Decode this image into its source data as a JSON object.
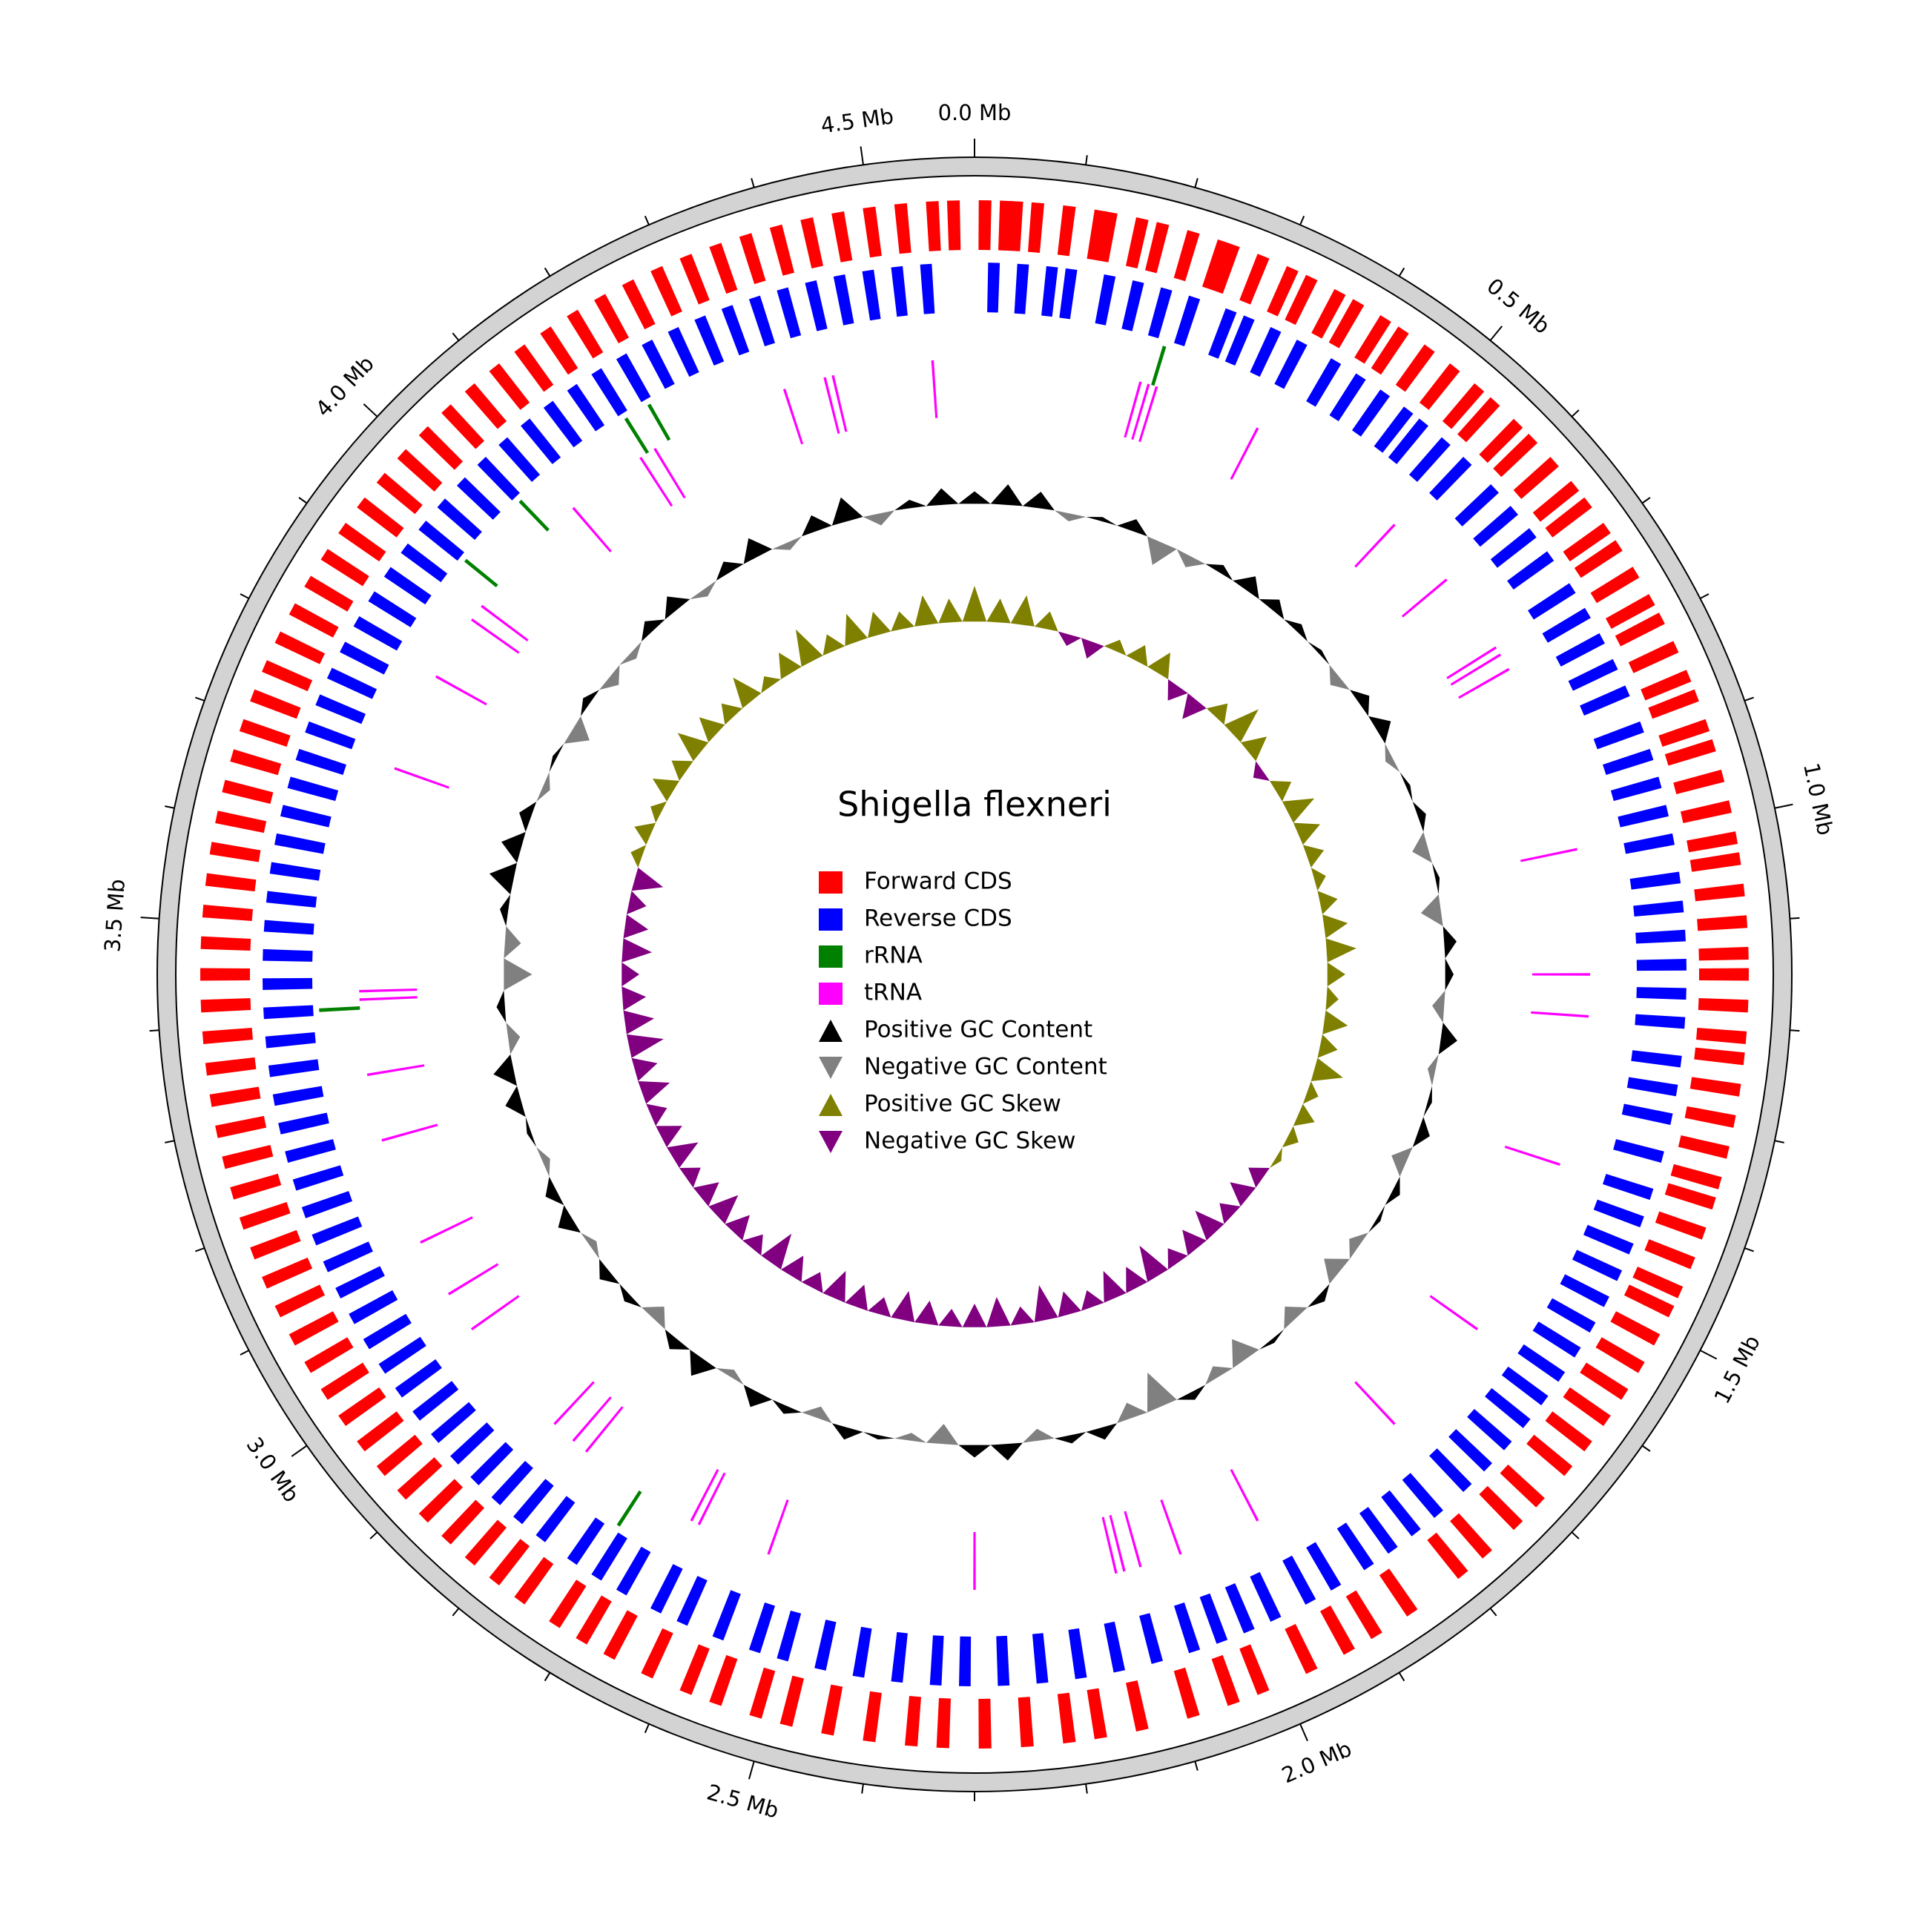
{
  "chart_data": {
    "type": "circular-genome",
    "title": "Shigella flexneri",
    "xlim": [
      0,
      4.6
    ],
    "xticks": [
      {
        "value": 0,
        "label": "0.0 Mb"
      },
      {
        "value": 0.5,
        "label": "0.5 Mb"
      },
      {
        "value": 1.0,
        "label": "1.0 Mb"
      },
      {
        "value": 1.5,
        "label": "1.5 Mb"
      },
      {
        "value": 2.0,
        "label": "2.0 Mb"
      },
      {
        "value": 2.5,
        "label": "2.5 Mb"
      },
      {
        "value": 3.0,
        "label": "3.0 Mb"
      },
      {
        "value": 3.5,
        "label": "3.5 Mb"
      },
      {
        "value": 4.0,
        "label": "4.0 Mb"
      },
      {
        "value": 4.5,
        "label": "4.5 Mb"
      }
    ],
    "minor_xticks": [
      0.1,
      0.2,
      0.3,
      0.4,
      0.6,
      0.7,
      0.8,
      0.9,
      1.1,
      1.2,
      1.3,
      1.4,
      1.6,
      1.7,
      1.8,
      1.9,
      2.1,
      2.2,
      2.3,
      2.4,
      2.6,
      2.7,
      2.8,
      2.9,
      3.1,
      3.2,
      3.3,
      3.4,
      3.6,
      3.7,
      3.8,
      3.9,
      4.1,
      4.2,
      4.3,
      4.4
    ],
    "series": [
      {
        "name": "Forward CDS",
        "color": "#ff0000",
        "marker": "square",
        "x": [
          0.01,
          0.03,
          0.04,
          0.06,
          0.09,
          0.12,
          0.13,
          0.16,
          0.18,
          0.21,
          0.24,
          0.25,
          0.28,
          0.31,
          0.33,
          0.36,
          0.38,
          0.41,
          0.43,
          0.46,
          0.49,
          0.52,
          0.54,
          0.57,
          0.59,
          0.62,
          0.65,
          0.67,
          0.7,
          0.72,
          0.75,
          0.78,
          0.8,
          0.83,
          0.86,
          0.88,
          0.91,
          0.93,
          0.96,
          0.99,
          1.02,
          1.04,
          1.07,
          1.1,
          1.13,
          1.15,
          1.18,
          1.21,
          1.23,
          1.26,
          1.29,
          1.32,
          1.35,
          1.37,
          1.4,
          1.43,
          1.46,
          1.48,
          1.51,
          1.54,
          1.57,
          1.6,
          1.63,
          1.66,
          1.7,
          1.73,
          1.77,
          1.8,
          1.86,
          1.9,
          1.93,
          1.97,
          2.02,
          2.05,
          2.09,
          2.14,
          2.18,
          2.21,
          2.25,
          2.29,
          2.33,
          2.36,
          2.4,
          2.44,
          2.48,
          2.51,
          2.55,
          2.58,
          2.62,
          2.66,
          2.69,
          2.72,
          2.76,
          2.79,
          2.82,
          2.85,
          2.88,
          2.91,
          2.94,
          2.97,
          3.0,
          3.03,
          3.06,
          3.09,
          3.12,
          3.15,
          3.18,
          3.21,
          3.24,
          3.27,
          3.3,
          3.33,
          3.36,
          3.39,
          3.42,
          3.45,
          3.48,
          3.51,
          3.54,
          3.57,
          3.6,
          3.63,
          3.66,
          3.69,
          3.72,
          3.75,
          3.78,
          3.81,
          3.84,
          3.87,
          3.9,
          3.93,
          3.96,
          3.99,
          4.02,
          4.05,
          4.08,
          4.11,
          4.14,
          4.17,
          4.2,
          4.23,
          4.26,
          4.29,
          4.32,
          4.35,
          4.38,
          4.41,
          4.44,
          4.47,
          4.5,
          4.53,
          4.56,
          4.58
        ]
      },
      {
        "name": "Reverse CDS",
        "color": "#0000ff",
        "marker": "square",
        "x": [
          0.02,
          0.05,
          0.08,
          0.1,
          0.14,
          0.17,
          0.2,
          0.23,
          0.27,
          0.29,
          0.32,
          0.35,
          0.39,
          0.42,
          0.45,
          0.48,
          0.5,
          0.53,
          0.56,
          0.6,
          0.63,
          0.66,
          0.69,
          0.73,
          0.76,
          0.79,
          0.82,
          0.85,
          0.89,
          0.92,
          0.95,
          0.98,
          1.01,
          1.05,
          1.08,
          1.11,
          1.14,
          1.17,
          1.2,
          1.24,
          1.27,
          1.3,
          1.34,
          1.38,
          1.41,
          1.44,
          1.47,
          1.5,
          1.53,
          1.56,
          1.59,
          1.62,
          1.65,
          1.68,
          1.71,
          1.74,
          1.78,
          1.81,
          1.84,
          1.87,
          1.91,
          1.94,
          1.98,
          2.01,
          2.04,
          2.07,
          2.11,
          2.15,
          2.19,
          2.23,
          2.27,
          2.31,
          2.34,
          2.38,
          2.42,
          2.46,
          2.5,
          2.53,
          2.57,
          2.61,
          2.64,
          2.68,
          2.71,
          2.74,
          2.78,
          2.81,
          2.84,
          2.87,
          2.9,
          2.93,
          2.96,
          2.99,
          3.02,
          3.05,
          3.08,
          3.11,
          3.14,
          3.17,
          3.2,
          3.23,
          3.26,
          3.29,
          3.32,
          3.35,
          3.38,
          3.41,
          3.44,
          3.47,
          3.5,
          3.53,
          3.56,
          3.59,
          3.62,
          3.65,
          3.68,
          3.71,
          3.74,
          3.77,
          3.8,
          3.83,
          3.86,
          3.89,
          3.92,
          3.95,
          3.98,
          4.01,
          4.04,
          4.07,
          4.1,
          4.13,
          4.16,
          4.19,
          4.22,
          4.25,
          4.28,
          4.31,
          4.34,
          4.37,
          4.4,
          4.43,
          4.46,
          4.49,
          4.52,
          4.55
        ]
      },
      {
        "name": "rRNA",
        "color": "#008000",
        "marker": "square",
        "x": [
          0.215,
          2.72,
          3.41,
          3.95,
          4.04,
          4.19,
          4.22
        ]
      },
      {
        "name": "tRNA",
        "color": "#ff00ff",
        "marker": "square",
        "x": [
          0.2,
          0.21,
          0.22,
          0.35,
          0.55,
          0.64,
          0.74,
          0.75,
          0.77,
          1.0,
          1.15,
          1.2,
          1.38,
          1.6,
          1.75,
          1.95,
          2.05,
          2.1,
          2.12,
          2.13,
          2.3,
          2.55,
          2.64,
          2.65,
          2.8,
          2.82,
          2.85,
          3.0,
          3.05,
          3.12,
          3.25,
          3.33,
          3.42,
          3.43,
          3.7,
          3.82,
          3.9,
          3.92,
          4.08,
          4.18,
          4.2,
          4.37,
          4.42,
          4.43,
          4.55
        ]
      },
      {
        "name": "Positive GC Content",
        "color": "#000000",
        "marker": "triangle-up"
      },
      {
        "name": "Negative GC Content",
        "color": "#808080",
        "marker": "triangle-down"
      },
      {
        "name": "Positive GC Skew",
        "color": "#808000",
        "marker": "triangle-up"
      },
      {
        "name": "Negative GC Skew",
        "color": "#800080",
        "marker": "triangle-down"
      }
    ],
    "gc_content": {
      "ylim": [
        -1,
        1
      ],
      "x": [
        0,
        0.05,
        0.1,
        0.15,
        0.2,
        0.25,
        0.3,
        0.35,
        0.4,
        0.45,
        0.5,
        0.55,
        0.6,
        0.65,
        0.7,
        0.75,
        0.8,
        0.85,
        0.9,
        0.95,
        1.0,
        1.05,
        1.1,
        1.15,
        1.2,
        1.25,
        1.3,
        1.35,
        1.4,
        1.45,
        1.5,
        1.55,
        1.6,
        1.65,
        1.7,
        1.75,
        1.8,
        1.85,
        1.9,
        1.95,
        2.0,
        2.05,
        2.1,
        2.15,
        2.2,
        2.25,
        2.3,
        2.35,
        2.4,
        2.45,
        2.5,
        2.55,
        2.6,
        2.65,
        2.7,
        2.75,
        2.8,
        2.85,
        2.9,
        2.95,
        3.0,
        3.05,
        3.1,
        3.15,
        3.2,
        3.25,
        3.3,
        3.35,
        3.4,
        3.45,
        3.5,
        3.55,
        3.6,
        3.65,
        3.7,
        3.75,
        3.8,
        3.85,
        3.9,
        3.95,
        4.0,
        4.05,
        4.1,
        4.15,
        4.2,
        4.25,
        4.3,
        4.35,
        4.4,
        4.45,
        4.5,
        4.55
      ],
      "values": [
        0.3,
        0.5,
        0.4,
        -0.2,
        0.1,
        0.3,
        -0.6,
        -0.3,
        0.2,
        0.4,
        0.3,
        0.2,
        0.1,
        -0.3,
        0.3,
        0.4,
        -0.2,
        0.1,
        0.2,
        -0.4,
        0.1,
        -0.5,
        0.3,
        0.2,
        -0.3,
        0.4,
        -0.2,
        0.1,
        0.3,
        -0.4,
        0.2,
        0.1,
        -0.3,
        -0.5,
        0.2,
        -0.4,
        0.1,
        -0.6,
        -0.3,
        0.2,
        -0.9,
        -0.4,
        0.3,
        0.2,
        -0.3,
        0.4,
        0.3,
        -0.5,
        -0.2,
        0.1,
        0.3,
        -0.3,
        0.2,
        0.4,
        -0.2,
        0.5,
        0.3,
        -0.4,
        0.2,
        0.3,
        -0.2,
        0.4,
        0.3,
        -0.2,
        0.1,
        0.4,
        0.5,
        -0.3,
        0.2,
        -0.7,
        -0.4,
        0.2,
        0.6,
        0.5,
        0.3,
        -0.2,
        0.1,
        -0.5,
        0.2,
        -0.3,
        -0.2,
        0.3,
        0.4,
        -0.2,
        0.3,
        0.5,
        -0.2,
        0.4,
        0.6,
        -0.3,
        0.2,
        0.4
      ]
    },
    "gc_skew": {
      "ylim": [
        -1,
        1
      ],
      "x": [
        0,
        0.05,
        0.1,
        0.15,
        0.2,
        0.25,
        0.3,
        0.35,
        0.4,
        0.45,
        0.5,
        0.55,
        0.6,
        0.65,
        0.7,
        0.75,
        0.8,
        0.85,
        0.9,
        0.95,
        1.0,
        1.05,
        1.1,
        1.15,
        1.2,
        1.25,
        1.3,
        1.35,
        1.4,
        1.45,
        1.5,
        1.55,
        1.6,
        1.65,
        1.7,
        1.75,
        1.8,
        1.85,
        1.9,
        1.95,
        2.0,
        2.05,
        2.1,
        2.15,
        2.2,
        2.25,
        2.3,
        2.35,
        2.4,
        2.45,
        2.5,
        2.55,
        2.6,
        2.65,
        2.7,
        2.75,
        2.8,
        2.85,
        2.9,
        2.95,
        3.0,
        3.05,
        3.1,
        3.15,
        3.2,
        3.25,
        3.3,
        3.35,
        3.4,
        3.45,
        3.5,
        3.55,
        3.6,
        3.65,
        3.7,
        3.75,
        3.8,
        3.85,
        3.9,
        3.95,
        4.0,
        4.05,
        4.1,
        4.15,
        4.2,
        4.25,
        4.3,
        4.35,
        4.4,
        4.45,
        4.5,
        4.55
      ],
      "values": [
        0.6,
        0.4,
        0.5,
        0.3,
        -0.2,
        -0.3,
        0.2,
        0.3,
        0.4,
        -0.3,
        -0.4,
        0.3,
        0.6,
        0.4,
        -0.2,
        0.3,
        0.5,
        0.4,
        0.3,
        0.2,
        0.3,
        0.4,
        0.5,
        0.3,
        0.2,
        0.4,
        0.3,
        0.5,
        0.2,
        0.3,
        0.2,
        0.1,
        -0.3,
        -0.4,
        -0.3,
        -0.5,
        -0.4,
        -0.3,
        -0.6,
        -0.4,
        -0.5,
        -0.3,
        -0.4,
        -0.6,
        -0.3,
        -0.5,
        -0.4,
        -0.3,
        -0.4,
        -0.5,
        -0.3,
        -0.4,
        -0.5,
        -0.3,
        -0.4,
        -0.6,
        -0.3,
        -0.4,
        -0.5,
        -0.4,
        -0.3,
        -0.5,
        -0.4,
        -0.3,
        -0.5,
        -0.4,
        -0.6,
        -0.5,
        -0.4,
        -0.3,
        -0.5,
        -0.4,
        -0.3,
        -0.5,
        0.2,
        0.3,
        0.2,
        0.4,
        0.3,
        0.5,
        0.4,
        0.3,
        0.5,
        0.2,
        0.4,
        0.6,
        0.3,
        0.5,
        0.4,
        0.3,
        0.5,
        0.4
      ]
    }
  }
}
